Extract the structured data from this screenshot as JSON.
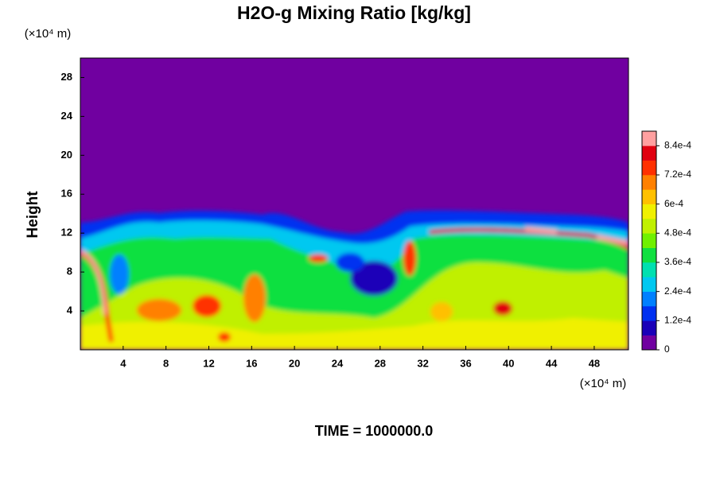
{
  "chart_data": {
    "type": "heatmap",
    "title": "H2O-g Mixing Ratio [kg/kg]",
    "x_unit": "(×10⁴ m)",
    "y_unit": "(×10⁴ m)",
    "ylabel": "Height",
    "footer": "TIME = 1000000.0",
    "xlim": [
      0,
      51.2
    ],
    "xticks": [
      4,
      8,
      12,
      16,
      20,
      24,
      28,
      32,
      36,
      40,
      44,
      48
    ],
    "ylim": [
      0,
      30
    ],
    "yticks": [
      4,
      8,
      12,
      16,
      20,
      24,
      28
    ],
    "clim": [
      0,
      0.0009
    ],
    "cticks": [
      0,
      {
        "value": 0.00012,
        "label": "1.2e-4"
      },
      {
        "value": 0.00024,
        "label": "2.4e-4"
      },
      {
        "value": 0.00036,
        "label": "3.6e-4"
      },
      {
        "value": 0.00048,
        "label": "4.8e-4"
      },
      {
        "value": 0.0006,
        "label": "6e-4"
      },
      {
        "value": 0.00072,
        "label": "7.2e-4"
      },
      {
        "value": 0.00084,
        "label": "8.4e-4"
      }
    ],
    "colormap": [
      "#7000a0",
      "#1a00b8",
      "#0030f0",
      "#0080ff",
      "#00c8f0",
      "#00e0b0",
      "#10e040",
      "#70f000",
      "#c0f000",
      "#f0f000",
      "#ffc000",
      "#ff8000",
      "#ff3000",
      "#e00010",
      "#ffa0a0"
    ]
  }
}
